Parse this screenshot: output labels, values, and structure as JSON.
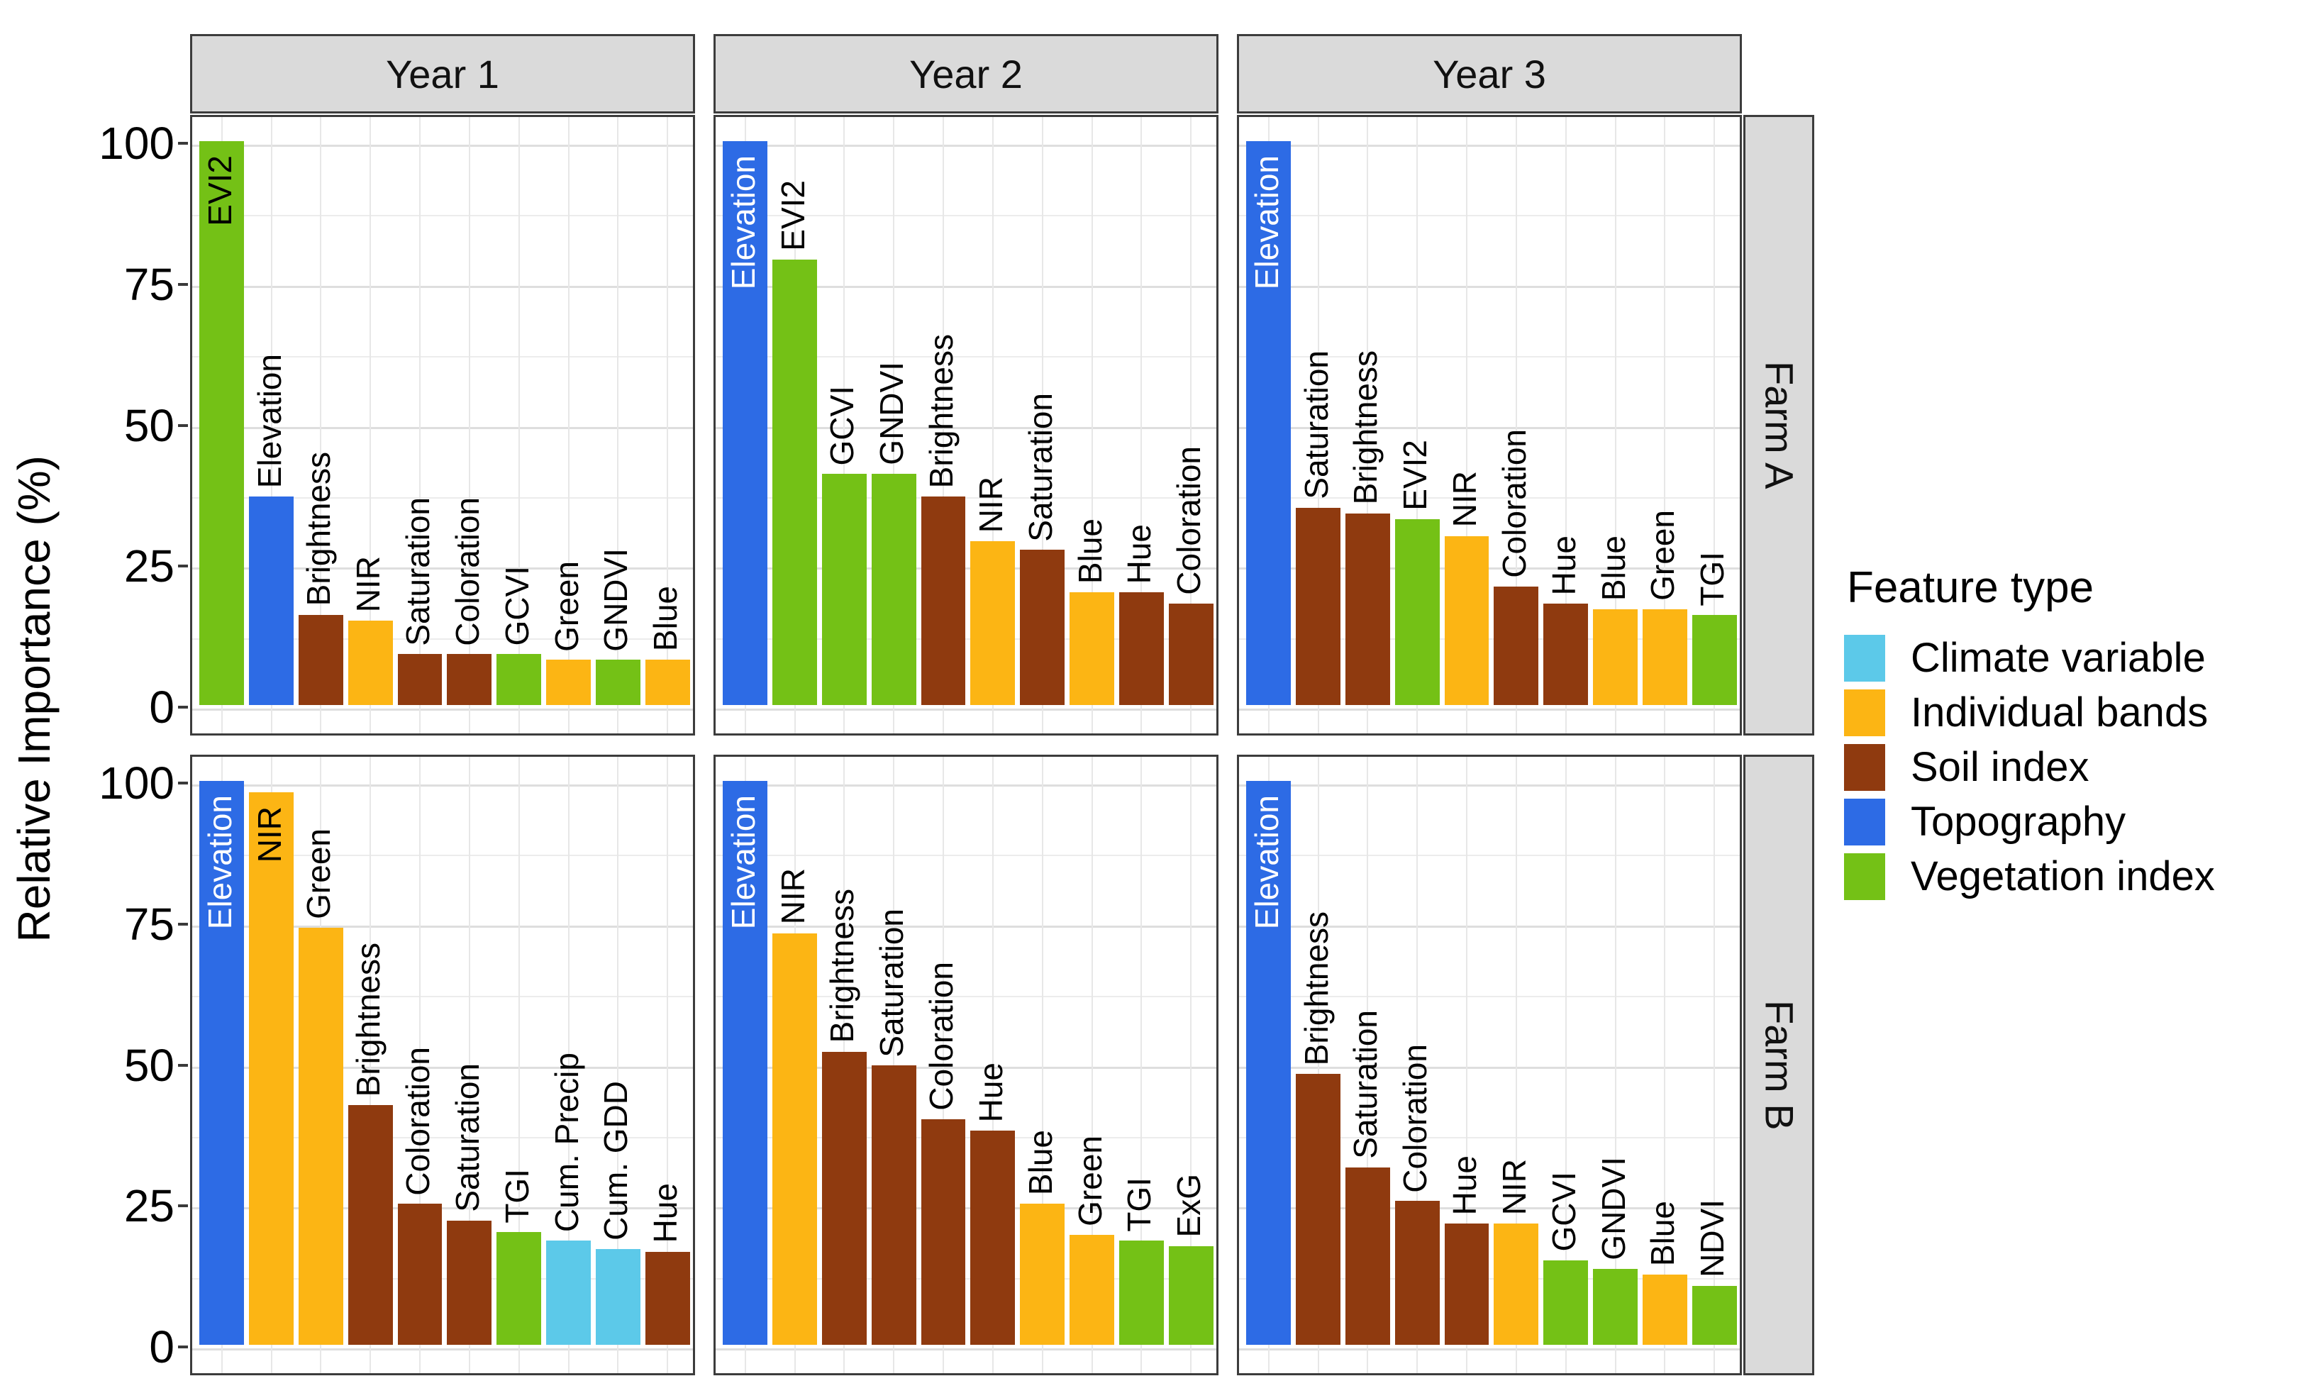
{
  "chart_data": {
    "type": "bar",
    "title": "",
    "ylabel": "Relative Importance (%)",
    "ylim": [
      0,
      100
    ],
    "yticks": [
      0,
      25,
      50,
      75,
      100
    ],
    "grid": "on",
    "facet_cols": [
      "Year 1",
      "Year 2",
      "Year 3"
    ],
    "facet_rows": [
      "Farm A",
      "Farm B"
    ],
    "legend": {
      "title": "Feature type",
      "position": "right",
      "entries": [
        {
          "label": "Climate variable",
          "color": "#5cc9e9"
        },
        {
          "label": "Individual bands",
          "color": "#fcb514"
        },
        {
          "label": "Soil index",
          "color": "#8f3a0f"
        },
        {
          "label": "Topography",
          "color": "#2d6be5"
        },
        {
          "label": "Vegetation index",
          "color": "#74c116"
        }
      ]
    },
    "feature_colors": {
      "Climate variable": "#5cc9e9",
      "Individual bands": "#fcb514",
      "Soil index": "#8f3a0f",
      "Topography": "#2d6be5",
      "Vegetation index": "#74c116"
    },
    "panels": [
      {
        "row": "Farm A",
        "col": "Year 1",
        "bars": [
          {
            "label": "EVI2",
            "type": "Vegetation index",
            "value": 100
          },
          {
            "label": "Elevation",
            "type": "Topography",
            "value": 37
          },
          {
            "label": "Brightness",
            "type": "Soil index",
            "value": 16
          },
          {
            "label": "NIR",
            "type": "Individual bands",
            "value": 15
          },
          {
            "label": "Saturation",
            "type": "Soil index",
            "value": 9
          },
          {
            "label": "Coloration",
            "type": "Soil index",
            "value": 9
          },
          {
            "label": "GCVI",
            "type": "Vegetation index",
            "value": 9
          },
          {
            "label": "Green",
            "type": "Individual bands",
            "value": 8
          },
          {
            "label": "GNDVI",
            "type": "Vegetation index",
            "value": 8
          },
          {
            "label": "Blue",
            "type": "Individual bands",
            "value": 8
          }
        ]
      },
      {
        "row": "Farm A",
        "col": "Year 2",
        "bars": [
          {
            "label": "Elevation",
            "type": "Topography",
            "value": 100
          },
          {
            "label": "EVI2",
            "type": "Vegetation index",
            "value": 79
          },
          {
            "label": "GCVI",
            "type": "Vegetation index",
            "value": 41
          },
          {
            "label": "GNDVI",
            "type": "Vegetation index",
            "value": 41
          },
          {
            "label": "Brightness",
            "type": "Soil index",
            "value": 37
          },
          {
            "label": "NIR",
            "type": "Individual bands",
            "value": 29
          },
          {
            "label": "Saturation",
            "type": "Soil index",
            "value": 27.5
          },
          {
            "label": "Blue",
            "type": "Individual bands",
            "value": 20
          },
          {
            "label": "Hue",
            "type": "Soil index",
            "value": 20
          },
          {
            "label": "Coloration",
            "type": "Soil index",
            "value": 18
          }
        ]
      },
      {
        "row": "Farm A",
        "col": "Year 3",
        "bars": [
          {
            "label": "Elevation",
            "type": "Topography",
            "value": 100
          },
          {
            "label": "Saturation",
            "type": "Soil index",
            "value": 35
          },
          {
            "label": "Brightness",
            "type": "Soil index",
            "value": 34
          },
          {
            "label": "EVI2",
            "type": "Vegetation index",
            "value": 33
          },
          {
            "label": "NIR",
            "type": "Individual bands",
            "value": 30
          },
          {
            "label": "Coloration",
            "type": "Soil index",
            "value": 21
          },
          {
            "label": "Hue",
            "type": "Soil index",
            "value": 18
          },
          {
            "label": "Blue",
            "type": "Individual bands",
            "value": 17
          },
          {
            "label": "Green",
            "type": "Individual bands",
            "value": 17
          },
          {
            "label": "TGI",
            "type": "Vegetation index",
            "value": 16
          }
        ]
      },
      {
        "row": "Farm B",
        "col": "Year 1",
        "bars": [
          {
            "label": "Elevation",
            "type": "Topography",
            "value": 100
          },
          {
            "label": "NIR",
            "type": "Individual bands",
            "value": 98
          },
          {
            "label": "Green",
            "type": "Individual bands",
            "value": 74
          },
          {
            "label": "Brightness",
            "type": "Soil index",
            "value": 42.5
          },
          {
            "label": "Coloration",
            "type": "Soil index",
            "value": 25
          },
          {
            "label": "Saturation",
            "type": "Soil index",
            "value": 22
          },
          {
            "label": "TGI",
            "type": "Vegetation index",
            "value": 20
          },
          {
            "label": "Cum. Precip",
            "type": "Climate variable",
            "value": 18.5
          },
          {
            "label": "Cum. GDD",
            "type": "Climate variable",
            "value": 17
          },
          {
            "label": "Hue",
            "type": "Soil index",
            "value": 16.5
          }
        ]
      },
      {
        "row": "Farm B",
        "col": "Year 2",
        "bars": [
          {
            "label": "Elevation",
            "type": "Topography",
            "value": 100
          },
          {
            "label": "NIR",
            "type": "Individual bands",
            "value": 73
          },
          {
            "label": "Brightness",
            "type": "Soil index",
            "value": 52
          },
          {
            "label": "Saturation",
            "type": "Soil index",
            "value": 49.5
          },
          {
            "label": "Coloration",
            "type": "Soil index",
            "value": 40
          },
          {
            "label": "Hue",
            "type": "Soil index",
            "value": 38
          },
          {
            "label": "Blue",
            "type": "Individual bands",
            "value": 25
          },
          {
            "label": "Green",
            "type": "Individual bands",
            "value": 19.5
          },
          {
            "label": "TGI",
            "type": "Vegetation index",
            "value": 18.5
          },
          {
            "label": "ExG",
            "type": "Vegetation index",
            "value": 17.5
          }
        ]
      },
      {
        "row": "Farm B",
        "col": "Year 3",
        "bars": [
          {
            "label": "Elevation",
            "type": "Topography",
            "value": 100
          },
          {
            "label": "Brightness",
            "type": "Soil index",
            "value": 48
          },
          {
            "label": "Saturation",
            "type": "Soil index",
            "value": 31.5
          },
          {
            "label": "Coloration",
            "type": "Soil index",
            "value": 25.5
          },
          {
            "label": "Hue",
            "type": "Soil index",
            "value": 21.5
          },
          {
            "label": "NIR",
            "type": "Individual bands",
            "value": 21.5
          },
          {
            "label": "GCVI",
            "type": "Vegetation index",
            "value": 15
          },
          {
            "label": "GNDVI",
            "type": "Vegetation index",
            "value": 13.5
          },
          {
            "label": "Blue",
            "type": "Individual bands",
            "value": 12.5
          },
          {
            "label": "NDVI",
            "type": "Vegetation index",
            "value": 10.5
          }
        ]
      }
    ]
  }
}
